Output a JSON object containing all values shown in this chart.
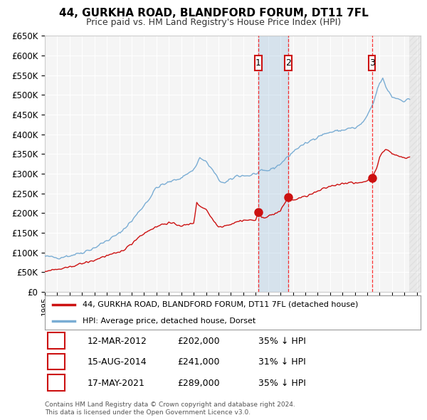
{
  "title": "44, GURKHA ROAD, BLANDFORD FORUM, DT11 7FL",
  "subtitle": "Price paid vs. HM Land Registry's House Price Index (HPI)",
  "ylim": [
    0,
    650000
  ],
  "yticks": [
    0,
    50000,
    100000,
    150000,
    200000,
    250000,
    300000,
    350000,
    400000,
    450000,
    500000,
    550000,
    600000,
    650000
  ],
  "xlim_start": 1995.0,
  "xlim_end": 2025.3,
  "background_color": "#ffffff",
  "plot_bg_color": "#f5f5f5",
  "grid_color": "#ffffff",
  "hpi_color": "#7aadd4",
  "hpi_fill_color": "#ddeeff",
  "price_color": "#cc1111",
  "transactions": [
    {
      "num": 1,
      "date": "12-MAR-2012",
      "price": 202000,
      "pct": "35%",
      "x_year": 2012.2
    },
    {
      "num": 2,
      "date": "15-AUG-2014",
      "price": 241000,
      "pct": "31%",
      "x_year": 2014.62
    },
    {
      "num": 3,
      "date": "17-MAY-2021",
      "price": 289000,
      "pct": "35%",
      "x_year": 2021.37
    }
  ],
  "legend_address": "44, GURKHA ROAD, BLANDFORD FORUM, DT11 7FL (detached house)",
  "legend_hpi": "HPI: Average price, detached house, Dorset",
  "footer1": "Contains HM Land Registry data © Crown copyright and database right 2024.",
  "footer2": "This data is licensed under the Open Government Licence v3.0."
}
